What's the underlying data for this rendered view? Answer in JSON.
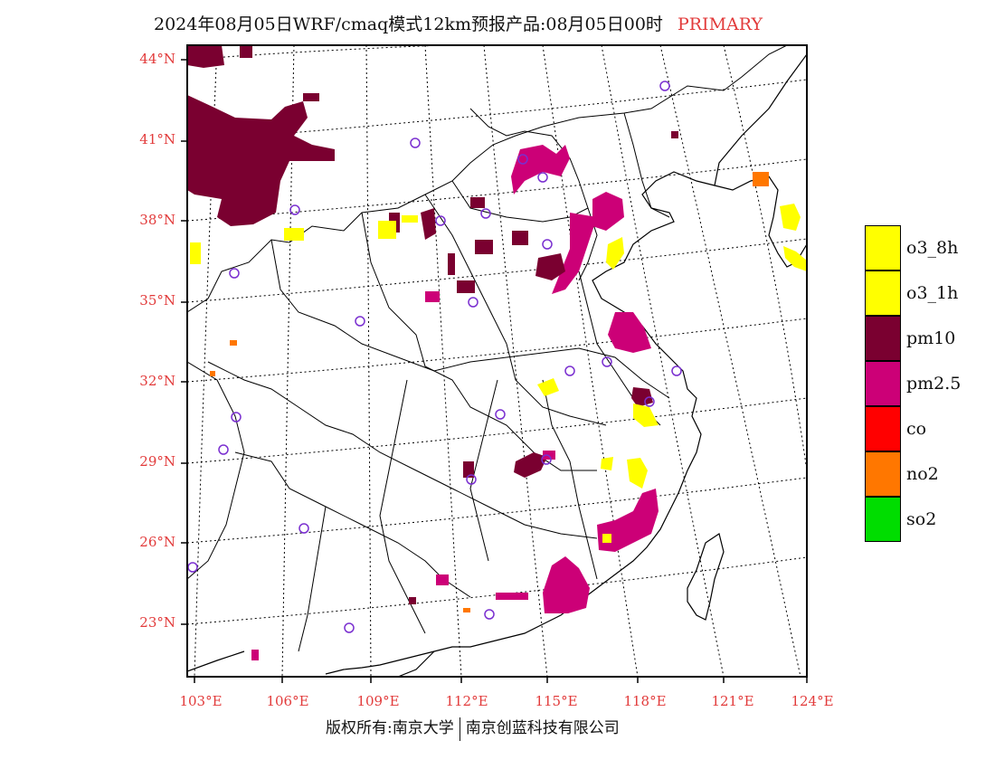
{
  "title": {
    "main": "2024年08月05日WRF/cmaq模式12km预报产品:08月05日00时",
    "tag": "PRIMARY"
  },
  "map": {
    "lat_labels": [
      "44°N",
      "41°N",
      "38°N",
      "35°N",
      "32°N",
      "29°N",
      "26°N",
      "23°N"
    ],
    "lon_labels": [
      "103°E",
      "106°E",
      "109°E",
      "112°E",
      "115°E",
      "118°E",
      "121°E",
      "124°E"
    ]
  },
  "legend": {
    "items": [
      {
        "label": "o3_8h",
        "color": "#ffff00"
      },
      {
        "label": "o3_1h",
        "color": "#ffff00"
      },
      {
        "label": "pm10",
        "color": "#7a0030"
      },
      {
        "label": "pm2.5",
        "color": "#cc0077"
      },
      {
        "label": "co",
        "color": "#ff0000"
      },
      {
        "label": "no2",
        "color": "#ff7700"
      },
      {
        "label": "so2",
        "color": "#00dd00"
      }
    ]
  },
  "colors": {
    "pm10": "#7a0030",
    "pm25": "#cc0077",
    "o3": "#ffff00",
    "no2": "#ff7700",
    "station": "#7a2fd0",
    "label_red": "#e23b3b"
  },
  "footer": {
    "left": "版权所有:南京大学",
    "right": "南京创蓝科技有限公司"
  }
}
